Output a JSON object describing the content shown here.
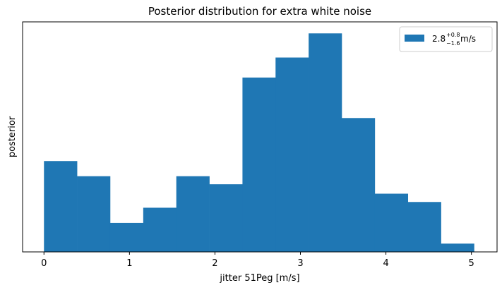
{
  "chart_data": {
    "type": "bar",
    "title": "Posterior distribution for extra white noise",
    "xlabel": "jitter 51Peg [m/s]",
    "ylabel": "posterior",
    "xlim": [
      -0.25,
      5.3
    ],
    "ylim": [
      0,
      1.0
    ],
    "x_ticks": [
      "0",
      "1",
      "2",
      "3",
      "4",
      "5"
    ],
    "y_ticks_shown": false,
    "bin_edges": [
      0.0,
      0.387,
      0.774,
      1.161,
      1.548,
      1.935,
      2.322,
      2.709,
      3.096,
      3.483,
      3.87,
      4.257,
      4.644,
      5.031
    ],
    "values": [
      0.395,
      0.329,
      0.126,
      0.192,
      0.329,
      0.294,
      0.758,
      0.845,
      0.95,
      0.582,
      0.253,
      0.217,
      0.036
    ],
    "legend": {
      "label_main": "2.8",
      "label_sup": "+0.8",
      "label_sub": "−1.6",
      "label_unit": " m/s",
      "position": "top-right"
    },
    "bar_color": "#1f77b4",
    "grid": false
  }
}
